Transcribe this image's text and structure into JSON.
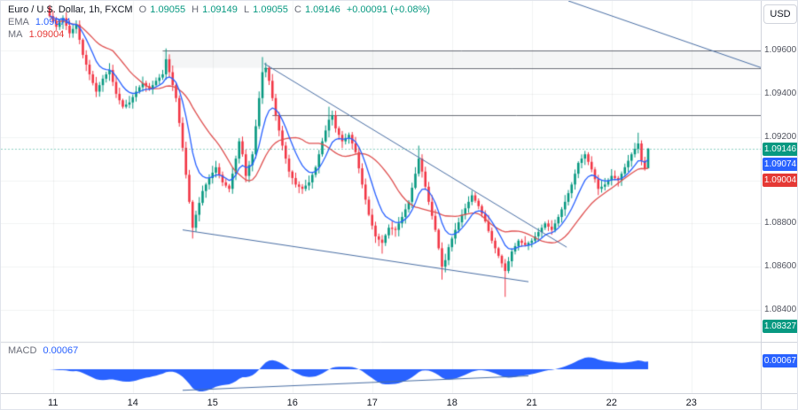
{
  "legend": {
    "symbol_title": "Euro / U.S. Dollar, 1h, FXCM",
    "ohlc": {
      "o_label": "O",
      "o_value": "1.09055",
      "h_label": "H",
      "h_value": "1.09149",
      "l_label": "L",
      "l_value": "1.09055",
      "c_label": "C",
      "c_value": "1.09146",
      "change": "+0.00091 (+0.08%)"
    },
    "ema": {
      "label": "EMA",
      "value": "1.09074"
    },
    "ma": {
      "label": "MA",
      "value": "1.09004"
    },
    "macd": {
      "label": "MACD",
      "value": "0.00067"
    }
  },
  "toolbar": {
    "currency_label": "USD"
  },
  "price_axis": {
    "badges": [
      {
        "text": "1.09146",
        "color": "#089981",
        "price": 1.09146
      },
      {
        "text": "1.09074",
        "color": "#2962ff",
        "price": 1.09074
      },
      {
        "text": "1.09004",
        "color": "#e53935",
        "price": 1.09004
      },
      {
        "text": "1.08327",
        "color": "#089981",
        "price": 1.08327
      }
    ],
    "macd_badge": {
      "text": "0.00067",
      "color": "#2962ff",
      "value": 0.00067
    }
  },
  "time_axis": {
    "labels": [
      {
        "text": "11",
        "i": 1
      },
      {
        "text": "14",
        "i": 25
      },
      {
        "text": "15",
        "i": 49
      },
      {
        "text": "16",
        "i": 73
      },
      {
        "text": "17",
        "i": 97
      },
      {
        "text": "18",
        "i": 121
      },
      {
        "text": "21",
        "i": 145
      },
      {
        "text": "22",
        "i": 169
      },
      {
        "text": "23",
        "i": 193
      }
    ]
  },
  "chart_data": [
    {
      "type": "candlestick",
      "title": "Euro / U.S. Dollar, 1h, FXCM",
      "timeframe": "1h",
      "candle_count": 181,
      "y_axis": {
        "visible_range": [
          1.08252,
          1.0983
        ],
        "ticks": [
          "1.09600",
          "1.09400",
          "1.09200",
          "1.09000",
          "1.08800",
          "1.08600",
          "1.08400"
        ]
      },
      "last": {
        "open": 1.09055,
        "high": 1.09149,
        "low": 1.09055,
        "close": 1.09146,
        "change": "+0.00091",
        "change_pct": "+0.08%"
      },
      "close_keypoints": [
        [
          0,
          1.0976
        ],
        [
          2,
          1.0971
        ],
        [
          4,
          1.0975
        ],
        [
          6,
          1.0968
        ],
        [
          8,
          1.0972
        ],
        [
          10,
          1.0958
        ],
        [
          12,
          1.0949
        ],
        [
          14,
          1.0941
        ],
        [
          16,
          1.0947
        ],
        [
          18,
          1.0951
        ],
        [
          20,
          1.094
        ],
        [
          22,
          1.0934
        ],
        [
          24,
          1.0936
        ],
        [
          26,
          1.0941
        ],
        [
          28,
          1.0945
        ],
        [
          30,
          1.0942
        ],
        [
          32,
          1.0946
        ],
        [
          34,
          1.0949
        ],
        [
          35,
          1.0956
        ],
        [
          36,
          1.095
        ],
        [
          38,
          1.0938
        ],
        [
          40,
          1.0915
        ],
        [
          42,
          1.089
        ],
        [
          43,
          1.0878
        ],
        [
          44,
          1.0884
        ],
        [
          46,
          1.0895
        ],
        [
          48,
          1.0901
        ],
        [
          50,
          1.0906
        ],
        [
          52,
          1.0899
        ],
        [
          54,
          1.0896
        ],
        [
          56,
          1.091
        ],
        [
          57,
          1.0918
        ],
        [
          58,
          1.0912
        ],
        [
          59,
          1.0902
        ],
        [
          61,
          1.0912
        ],
        [
          63,
          1.0938
        ],
        [
          64,
          1.095
        ],
        [
          65,
          1.0952
        ],
        [
          66,
          1.0946
        ],
        [
          68,
          1.093
        ],
        [
          70,
          1.0916
        ],
        [
          72,
          1.0904
        ],
        [
          74,
          1.0898
        ],
        [
          76,
          1.0896
        ],
        [
          78,
          1.0899
        ],
        [
          80,
          1.0906
        ],
        [
          82,
          1.0918
        ],
        [
          84,
          1.0928
        ],
        [
          85,
          1.093
        ],
        [
          86,
          1.0924
        ],
        [
          88,
          1.0918
        ],
        [
          90,
          1.0921
        ],
        [
          92,
          1.0913
        ],
        [
          94,
          1.0898
        ],
        [
          96,
          1.0884
        ],
        [
          98,
          1.0874
        ],
        [
          100,
          1.0871
        ],
        [
          102,
          1.0878
        ],
        [
          104,
          1.0877
        ],
        [
          106,
          1.0883
        ],
        [
          108,
          1.089
        ],
        [
          110,
          1.0903
        ],
        [
          111,
          1.091
        ],
        [
          112,
          1.0904
        ],
        [
          114,
          1.089
        ],
        [
          116,
          1.0877
        ],
        [
          118,
          1.086
        ],
        [
          119,
          1.0863
        ],
        [
          120,
          1.0869
        ],
        [
          122,
          1.0877
        ],
        [
          124,
          1.0884
        ],
        [
          126,
          1.089
        ],
        [
          127,
          1.0893
        ],
        [
          129,
          1.0888
        ],
        [
          131,
          1.0881
        ],
        [
          133,
          1.0872
        ],
        [
          135,
          1.0865
        ],
        [
          137,
          1.0858
        ],
        [
          139,
          1.0867
        ],
        [
          141,
          1.0872
        ],
        [
          143,
          1.087
        ],
        [
          145,
          1.0872
        ],
        [
          147,
          1.0876
        ],
        [
          149,
          1.088
        ],
        [
          151,
          1.0877
        ],
        [
          153,
          1.0883
        ],
        [
          155,
          1.089
        ],
        [
          157,
          1.0898
        ],
        [
          159,
          1.0908
        ],
        [
          161,
          1.0912
        ],
        [
          163,
          1.0905
        ],
        [
          165,
          1.0896
        ],
        [
          167,
          1.0898
        ],
        [
          169,
          1.0902
        ],
        [
          171,
          1.09
        ],
        [
          173,
          1.0906
        ],
        [
          175,
          1.0912
        ],
        [
          177,
          1.0917
        ],
        [
          178,
          1.0909
        ],
        [
          179,
          1.09055
        ],
        [
          180,
          1.09146
        ]
      ],
      "wicks": [
        {
          "i": 35,
          "high": 1.0961
        },
        {
          "i": 43,
          "low": 1.0873
        },
        {
          "i": 64,
          "high": 1.0957
        },
        {
          "i": 84,
          "high": 1.0934
        },
        {
          "i": 100,
          "low": 1.0866
        },
        {
          "i": 111,
          "high": 1.0916
        },
        {
          "i": 118,
          "low": 1.0854
        },
        {
          "i": 137,
          "low": 1.0846
        },
        {
          "i": 177,
          "high": 1.0922
        }
      ],
      "overlays": [
        {
          "name": "EMA",
          "color": "#2962ff",
          "last_value": 1.09074
        },
        {
          "name": "MA",
          "color": "#e05252",
          "last_value": 1.09004
        }
      ],
      "drawings": {
        "trendlines": [
          {
            "i1": 156,
            "p1": 1.0983,
            "i2": 216,
            "p2": 1.0951
          },
          {
            "i1": 64.5,
            "p1": 1.0954,
            "i2": 155.5,
            "p2": 1.0869
          },
          {
            "i1": 40,
            "p1": 1.0877,
            "i2": 144,
            "p2": 1.0853
          }
        ],
        "horizontal_rays": [
          {
            "from_i": 34,
            "price": 1.096
          },
          {
            "from_i": 64.5,
            "price": 1.0952
          },
          {
            "from_i": 67,
            "price": 1.093
          }
        ],
        "band": {
          "from_i": 34,
          "p1": 1.0952,
          "p2": 1.096
        }
      },
      "colors": {
        "up": "#089981",
        "down": "#f23645",
        "grid": "rgba(42,46,57,0.06)",
        "ray": "rgba(90,94,105,0.9)",
        "trendline": "#4a6fa5"
      }
    },
    {
      "type": "area",
      "name": "MACD histogram",
      "value_label": "0.00067",
      "last_value": 0.00067,
      "color": "#2962ff",
      "trendline": {
        "i1": 40,
        "f1": -0.95,
        "i2": 144,
        "f2": -0.3
      }
    }
  ]
}
